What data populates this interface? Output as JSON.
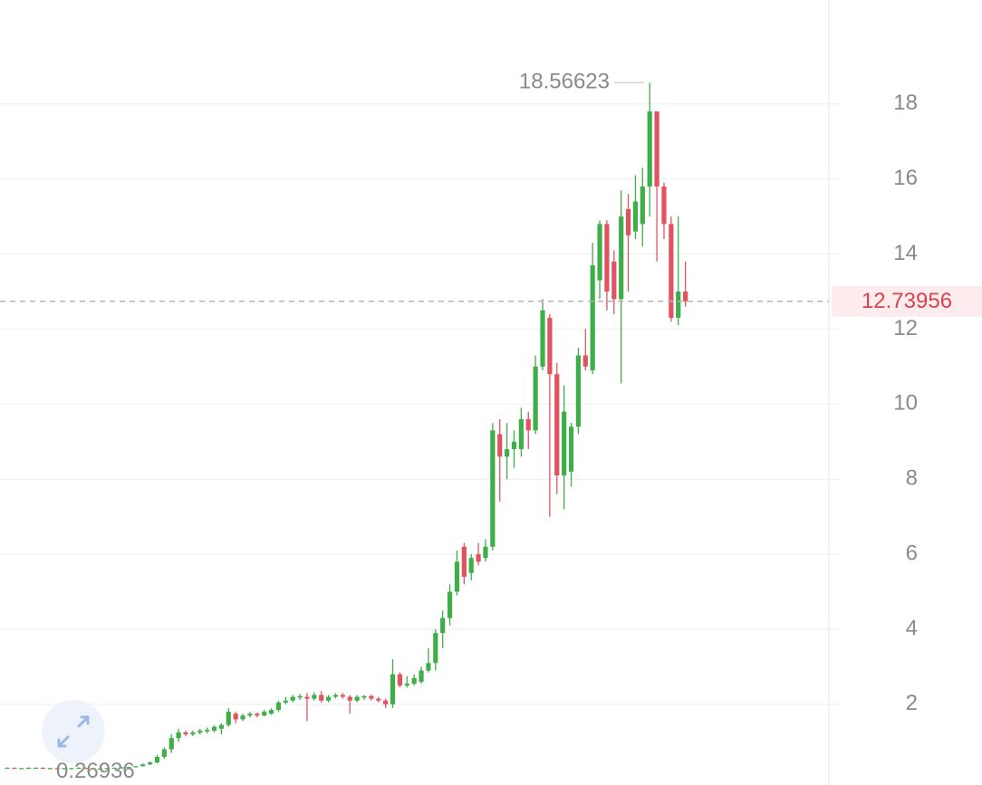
{
  "chart_data": {
    "type": "candlestick",
    "open": [
      0.3,
      0.31,
      0.3,
      0.3,
      0.31,
      0.31,
      0.3,
      0.3,
      0.29,
      0.3,
      0.3,
      0.31,
      0.3,
      0.28,
      0.29,
      0.3,
      0.31,
      0.32,
      0.33,
      0.35,
      0.4,
      0.45,
      0.6,
      0.8,
      1.1,
      1.25,
      1.2,
      1.25,
      1.28,
      1.3,
      1.35,
      1.45,
      1.75,
      1.6,
      1.7,
      1.75,
      1.7,
      1.75,
      1.85,
      2.05,
      2.1,
      2.18,
      2.2,
      2.15,
      2.25,
      2.1,
      2.2,
      2.25,
      2.2,
      2.1,
      2.18,
      2.22,
      2.15,
      2.1,
      2.0,
      2.8,
      2.5,
      2.55,
      2.6,
      2.9,
      3.1,
      3.9,
      4.3,
      5.0,
      6.2,
      5.5,
      6.0,
      5.9,
      6.2,
      9.2,
      8.6,
      8.8,
      8.8,
      9.6,
      9.3,
      11.0,
      12.3,
      10.8,
      8.1,
      8.2,
      9.4,
      11.3,
      10.9,
      13.3,
      14.8,
      13.8,
      12.8,
      15.2,
      14.6,
      14.8,
      15.8,
      17.8,
      15.8,
      14.8,
      12.3,
      13.0
    ],
    "high": [
      0.32,
      0.32,
      0.31,
      0.32,
      0.32,
      0.32,
      0.31,
      0.31,
      0.31,
      0.31,
      0.32,
      0.32,
      0.31,
      0.3,
      0.31,
      0.32,
      0.33,
      0.34,
      0.36,
      0.42,
      0.48,
      0.65,
      0.85,
      1.2,
      1.35,
      1.3,
      1.3,
      1.35,
      1.38,
      1.45,
      1.5,
      1.9,
      1.8,
      1.75,
      1.8,
      1.78,
      1.85,
      1.9,
      2.1,
      2.2,
      2.25,
      2.28,
      2.3,
      2.32,
      2.35,
      2.25,
      2.3,
      2.3,
      2.25,
      2.25,
      2.25,
      2.26,
      2.2,
      2.15,
      3.2,
      2.85,
      2.75,
      2.8,
      3.0,
      3.5,
      4.0,
      4.5,
      5.2,
      6.1,
      6.3,
      6.0,
      6.3,
      6.4,
      9.5,
      9.6,
      9.5,
      9.3,
      9.9,
      9.8,
      11.3,
      12.8,
      12.4,
      11.1,
      10.5,
      9.5,
      11.5,
      12.0,
      14.3,
      14.9,
      14.9,
      14.1,
      15.7,
      15.6,
      16.1,
      16.3,
      18.56623,
      17.8,
      15.9,
      15.0,
      15.0,
      13.8
    ],
    "low": [
      0.29,
      0.29,
      0.29,
      0.29,
      0.3,
      0.29,
      0.29,
      0.28,
      0.28,
      0.29,
      0.29,
      0.29,
      0.27,
      0.26936,
      0.28,
      0.29,
      0.3,
      0.31,
      0.32,
      0.34,
      0.38,
      0.42,
      0.55,
      0.7,
      1.0,
      1.15,
      1.15,
      1.2,
      1.22,
      1.25,
      1.2,
      1.4,
      1.5,
      1.55,
      1.65,
      1.65,
      1.68,
      1.72,
      1.8,
      2.0,
      2.05,
      2.12,
      1.55,
      2.1,
      2.05,
      2.05,
      2.15,
      2.15,
      1.75,
      2.05,
      2.12,
      2.1,
      2.05,
      1.9,
      1.9,
      2.45,
      2.45,
      2.5,
      2.55,
      2.85,
      2.9,
      3.5,
      4.1,
      4.9,
      5.2,
      5.3,
      5.7,
      5.8,
      6.1,
      7.4,
      8.0,
      8.3,
      8.6,
      8.8,
      9.2,
      10.9,
      7.0,
      7.6,
      7.2,
      7.8,
      9.2,
      10.9,
      10.8,
      12.8,
      12.5,
      12.4,
      10.55,
      13.0,
      14.4,
      14.2,
      15.0,
      13.8,
      14.4,
      12.2,
      12.1,
      12.6
    ],
    "close": [
      0.31,
      0.3,
      0.3,
      0.31,
      0.31,
      0.3,
      0.3,
      0.29,
      0.3,
      0.3,
      0.31,
      0.3,
      0.28,
      0.29,
      0.3,
      0.31,
      0.32,
      0.33,
      0.35,
      0.4,
      0.45,
      0.6,
      0.8,
      1.1,
      1.25,
      1.2,
      1.25,
      1.3,
      1.32,
      1.4,
      1.45,
      1.8,
      1.6,
      1.7,
      1.75,
      1.7,
      1.8,
      1.85,
      2.05,
      2.1,
      2.2,
      2.22,
      2.15,
      2.25,
      2.1,
      2.2,
      2.25,
      2.2,
      2.1,
      2.2,
      2.22,
      2.15,
      2.1,
      2.0,
      2.8,
      2.5,
      2.55,
      2.7,
      2.9,
      3.1,
      3.9,
      4.3,
      5.0,
      5.8,
      5.4,
      5.9,
      5.8,
      6.2,
      9.3,
      8.6,
      8.8,
      9.0,
      9.6,
      9.3,
      11.0,
      12.5,
      10.8,
      8.1,
      9.8,
      9.4,
      11.3,
      11.0,
      13.7,
      14.8,
      13.0,
      12.8,
      15.0,
      14.5,
      15.4,
      15.8,
      17.8,
      15.8,
      14.8,
      12.3,
      13.0,
      12.73956
    ],
    "up_color": "#3fae49",
    "down_color": "#e15361",
    "ylim": [
      -0.15,
      20.77
    ],
    "yticks": [
      2,
      4,
      6,
      8,
      10,
      12,
      14,
      16,
      18
    ],
    "grid": true,
    "last_price": 12.73956,
    "max_label": 18.56623,
    "min_label": 0.26936
  }
}
